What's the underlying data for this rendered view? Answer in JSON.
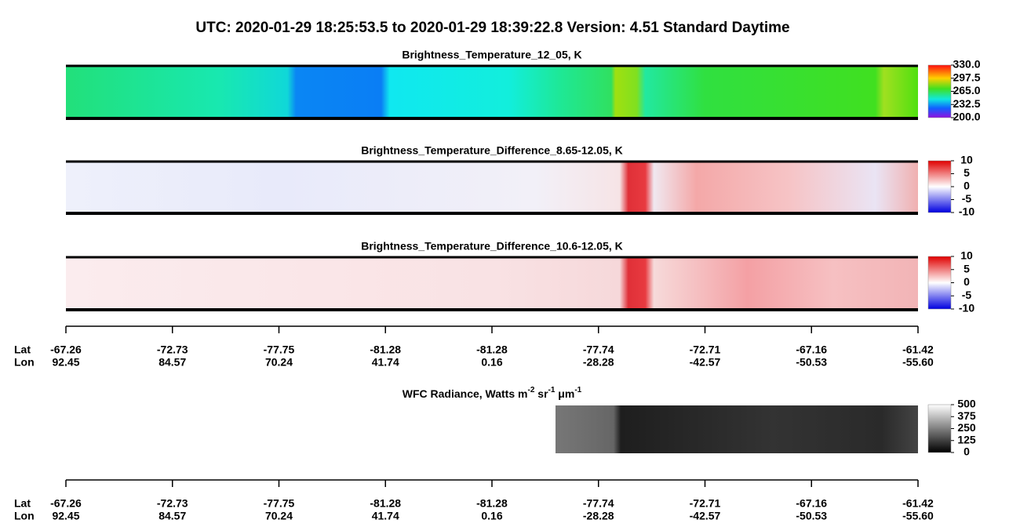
{
  "title": "UTC:  2020-01-29   18:25:53.5  to  2020-01-29   18:39:22.8    Version: 4.51  Standard Daytime",
  "panels": [
    {
      "title": "Brightness_Temperature_12_05, K",
      "colorbar_ticks": [
        {
          "value": 330,
          "label": "330.0"
        },
        297.5,
        {
          "value": 265,
          "label": "265.0"
        },
        232.5,
        {
          "value": 200,
          "label": "200.0"
        }
      ]
    },
    {
      "title": "Brightness_Temperature_Difference_8.65-12.05, K",
      "colorbar_ticks": [
        10,
        5,
        0,
        -5,
        -10
      ]
    },
    {
      "title": "Brightness_Temperature_Difference_10.6-12.05, K",
      "colorbar_ticks": [
        10,
        5,
        0,
        -5,
        -10
      ]
    },
    {
      "title_parts": [
        "WFC Radiance, Watts m",
        "-2",
        " sr",
        "-1",
        " μm",
        "-1"
      ],
      "colorbar_ticks": [
        500,
        375,
        250,
        125,
        0
      ]
    }
  ],
  "axes": [
    {
      "row_labels": [
        "Lat",
        "Lon"
      ],
      "lat": [
        "-67.26",
        "-72.73",
        "-77.75",
        "-81.28",
        "-81.28",
        "-77.74",
        "-72.71",
        "-67.16",
        "-61.42"
      ],
      "lon": [
        "92.45",
        "84.57",
        "70.24",
        "41.74",
        "0.16",
        "-28.28",
        "-42.57",
        "-50.53",
        "-55.60"
      ]
    },
    {
      "row_labels": [
        "Lat",
        "Lon"
      ],
      "lat": [
        "-67.26",
        "-72.73",
        "-77.75",
        "-81.28",
        "-81.28",
        "-77.74",
        "-72.71",
        "-67.16",
        "-61.42"
      ],
      "lon": [
        "92.45",
        "84.57",
        "70.24",
        "41.74",
        "0.16",
        "-28.28",
        "-42.57",
        "-50.53",
        "-55.60"
      ]
    }
  ]
}
